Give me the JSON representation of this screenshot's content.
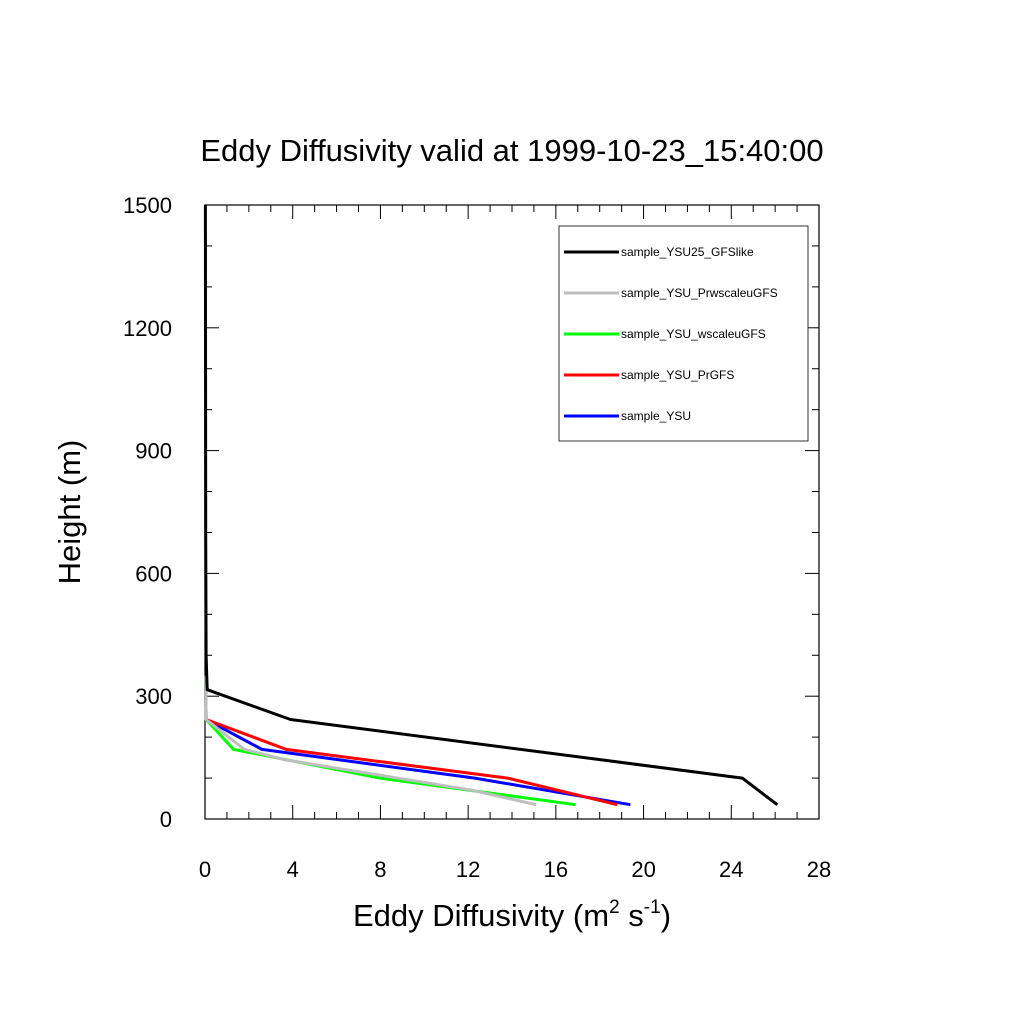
{
  "chart_data": {
    "type": "line",
    "title": "Eddy Diffusivity valid at 1999-10-23_15:40:00",
    "xlabel": {
      "base": "Eddy Diffusivity (m",
      "sup1": "2",
      "mid": " s",
      "sup2": "-1",
      "end": ")"
    },
    "ylabel": "Height (m)",
    "xlim": [
      0,
      28
    ],
    "ylim": [
      0,
      1500
    ],
    "x_ticks": [
      0,
      4,
      8,
      12,
      16,
      20,
      24,
      28
    ],
    "y_ticks": [
      0,
      300,
      600,
      900,
      1200,
      1500
    ],
    "x_tick_labels": [
      "0",
      "4",
      "8",
      "12",
      "16",
      "20",
      "24",
      "28"
    ],
    "y_tick_labels": [
      "0",
      "300",
      "600",
      "900",
      "1200",
      "1500"
    ],
    "legend_position": "top-right",
    "series": [
      {
        "name": "sample_YSU25_GFSlike",
        "color": "#000000",
        "points": [
          [
            26.1,
            35
          ],
          [
            24.5,
            100
          ],
          [
            3.9,
            243
          ],
          [
            0.1,
            316
          ],
          [
            0.05,
            400
          ],
          [
            0.03,
            700
          ],
          [
            0.02,
            1500
          ]
        ]
      },
      {
        "name": "sample_YSU_PrwscaleuGFS",
        "color": "#bebebe",
        "points": [
          [
            15.1,
            35
          ],
          [
            12.2,
            70
          ],
          [
            3.6,
            145
          ],
          [
            1.8,
            170
          ],
          [
            0.05,
            243
          ],
          [
            0.03,
            350
          ]
        ]
      },
      {
        "name": "sample_YSU_wscaleuGFS",
        "color": "#00ff00",
        "points": [
          [
            16.9,
            35
          ],
          [
            8.0,
            100
          ],
          [
            1.3,
            170
          ],
          [
            0.05,
            243
          ],
          [
            0.03,
            350
          ]
        ]
      },
      {
        "name": "sample_YSU_PrGFS",
        "color": "#ff0000",
        "points": [
          [
            18.8,
            35
          ],
          [
            13.8,
            100
          ],
          [
            3.7,
            170
          ],
          [
            0.05,
            243
          ],
          [
            0.03,
            350
          ]
        ]
      },
      {
        "name": "sample_YSU",
        "color": "#0000ff",
        "points": [
          [
            19.4,
            35
          ],
          [
            12.3,
            100
          ],
          [
            2.6,
            170
          ],
          [
            0.05,
            243
          ],
          [
            0.03,
            350
          ]
        ]
      }
    ]
  }
}
